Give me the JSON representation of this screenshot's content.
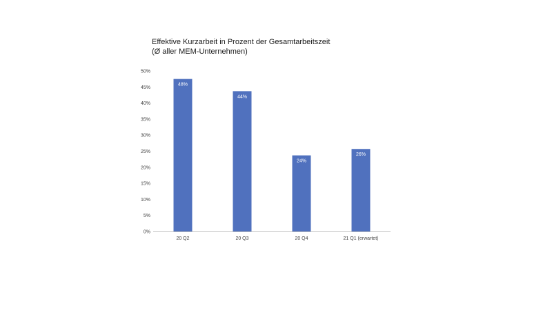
{
  "chart_data": {
    "type": "bar",
    "title": "Effektive Kurzarbeit in Prozent der Gesamtarbeitszeit",
    "subtitle": "(Ø aller MEM-Unternehmen)",
    "categories": [
      "20 Q2",
      "20 Q3",
      "20 Q4",
      "21 Q1 (erwartet)"
    ],
    "values": [
      47.5,
      43.7,
      23.7,
      25.7
    ],
    "data_labels": [
      "48%",
      "44%",
      "24%",
      "26%"
    ],
    "y_ticks": [
      "0%",
      "5%",
      "10%",
      "15%",
      "20%",
      "25%",
      "30%",
      "35%",
      "40%",
      "45%",
      "50%"
    ],
    "ylim": [
      0,
      50
    ],
    "bar_color": "#5071be",
    "grid": false,
    "legend": "none"
  }
}
